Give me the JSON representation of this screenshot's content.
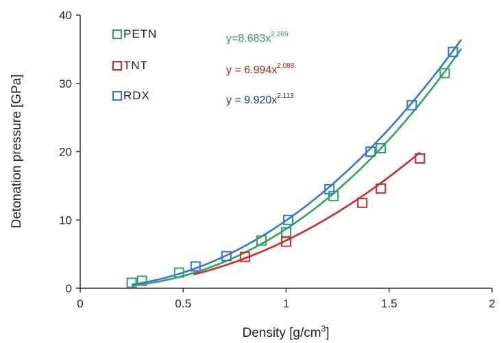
{
  "chart_data": {
    "type": "scatter",
    "xlabel": "Density [g/cm",
    "xlabel_sup": "3",
    "xlabel_end": "]",
    "ylabel": "Detonation pressure [GPa]",
    "xlim": [
      0,
      2
    ],
    "ylim": [
      0,
      40
    ],
    "xticks": [
      0,
      0.5,
      1,
      1.5,
      2
    ],
    "xtick_labels": [
      "0",
      "0.5",
      "1",
      "1.5",
      "2"
    ],
    "yticks": [
      0,
      10,
      20,
      30,
      40
    ],
    "ytick_labels": [
      "0",
      "10",
      "20",
      "30",
      "40"
    ],
    "grid": false,
    "legend_position": "top-left",
    "series": [
      {
        "name": "PETN",
        "color": "#2ea55a",
        "equation_prefix": "y=8.683x",
        "equation_exp": "2.269",
        "coef": 8.683,
        "exp": 2.269,
        "fit_range": [
          0.25,
          1.85
        ],
        "points": [
          [
            0.25,
            0.8
          ],
          [
            0.3,
            1.1
          ],
          [
            0.48,
            2.3
          ],
          [
            0.88,
            7.0
          ],
          [
            1.0,
            8.2
          ],
          [
            1.23,
            13.5
          ],
          [
            1.46,
            20.5
          ],
          [
            1.77,
            31.5
          ]
        ]
      },
      {
        "name": "TNT",
        "color": "#d62728",
        "equation_prefix": "y = 6.994x",
        "equation_exp": "2.088",
        "coef": 6.994,
        "exp": 2.088,
        "fit_range": [
          0.55,
          1.65
        ],
        "points": [
          [
            0.8,
            4.6
          ],
          [
            1.0,
            6.8
          ],
          [
            1.37,
            12.5
          ],
          [
            1.46,
            14.6
          ],
          [
            1.65,
            19.0
          ]
        ]
      },
      {
        "name": "RDX",
        "color": "#2f78d6",
        "equation_prefix": "y = 9.920x",
        "equation_exp": "2.113",
        "coef": 9.92,
        "exp": 2.113,
        "fit_range": [
          0.25,
          1.85
        ],
        "points": [
          [
            0.56,
            3.2
          ],
          [
            0.71,
            4.7
          ],
          [
            1.01,
            10.0
          ],
          [
            1.21,
            14.5
          ],
          [
            1.41,
            20.0
          ],
          [
            1.61,
            26.8
          ],
          [
            1.81,
            34.6
          ]
        ]
      }
    ],
    "equation_colors": [
      "#2ea55a",
      "#a1231f",
      "#1f3a66"
    ]
  }
}
